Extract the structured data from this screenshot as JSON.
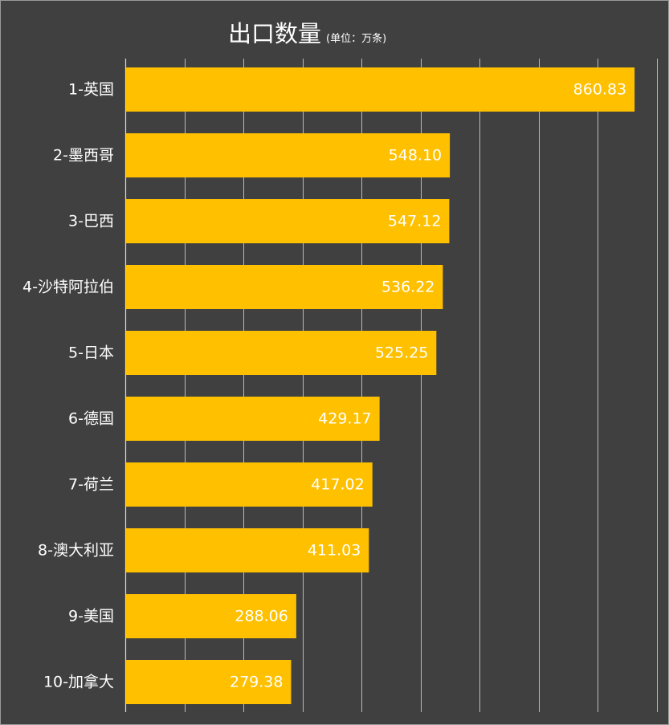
{
  "chart_data": {
    "type": "bar",
    "orientation": "horizontal",
    "title": "出口数量",
    "subtitle": "(单位：万条)",
    "categories": [
      "1-英国",
      "2-墨西哥",
      "3-巴西",
      "4-沙特阿拉伯",
      "5-日本",
      "6-德国",
      "7-荷兰",
      "8-澳大利亚",
      "9-美国",
      "10-加拿大"
    ],
    "values": [
      860.83,
      548.1,
      547.12,
      536.22,
      525.25,
      429.17,
      417.02,
      411.03,
      288.06,
      279.38
    ],
    "value_labels": [
      "860.83",
      "548.10",
      "547.12",
      "536.22",
      "525.25",
      "429.17",
      "417.02",
      "411.03",
      "288.06",
      "279.38"
    ],
    "xlim": [
      0,
      900
    ],
    "grid": true,
    "bar_color": "#FFC000",
    "background_color": "#404040",
    "gridline_color": "#D9D9D9"
  }
}
